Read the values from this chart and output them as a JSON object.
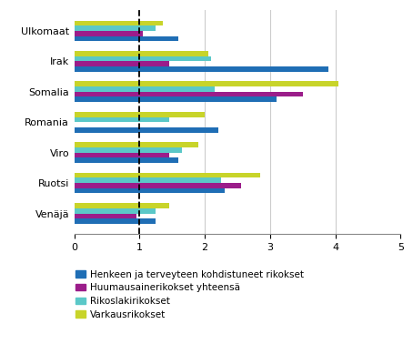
{
  "categories": [
    "Ulkomaat",
    "Irak",
    "Somalia",
    "Romania",
    "Viro",
    "Ruotsi",
    "Venäjä"
  ],
  "series": {
    "Henkeen ja terveyteen kohdistuneet rikokset": [
      1.6,
      3.9,
      3.1,
      2.2,
      1.6,
      2.3,
      1.25
    ],
    "Huumausainerikokset yhteensä": [
      1.05,
      1.45,
      3.5,
      0.0,
      1.45,
      2.55,
      0.95
    ],
    "Rikoslakirikokset": [
      1.25,
      2.1,
      2.15,
      1.45,
      1.65,
      2.25,
      1.25
    ],
    "Varkausrikokset": [
      1.35,
      2.05,
      4.05,
      2.0,
      1.9,
      2.85,
      1.45
    ]
  },
  "colors": {
    "Henkeen ja terveyteen kohdistuneet rikokset": "#1F6EB5",
    "Huumausainerikokset yhteensä": "#9B1D8A",
    "Rikoslakirikokset": "#5BC8C8",
    "Varkausrikokset": "#C8D42A"
  },
  "xlim": [
    0,
    5
  ],
  "xticks": [
    0,
    1,
    2,
    3,
    4,
    5
  ],
  "dashed_line_x": 1,
  "bar_height": 0.17,
  "group_padding": 0.12,
  "figsize": [
    4.54,
    3.78
  ],
  "dpi": 100,
  "legend_items": [
    "Henkeen ja terveyteen kohdistuneet rikokset",
    "Huumausainerikokset yhteensä",
    "Rikoslakirikokset",
    "Varkausrikokset"
  ]
}
